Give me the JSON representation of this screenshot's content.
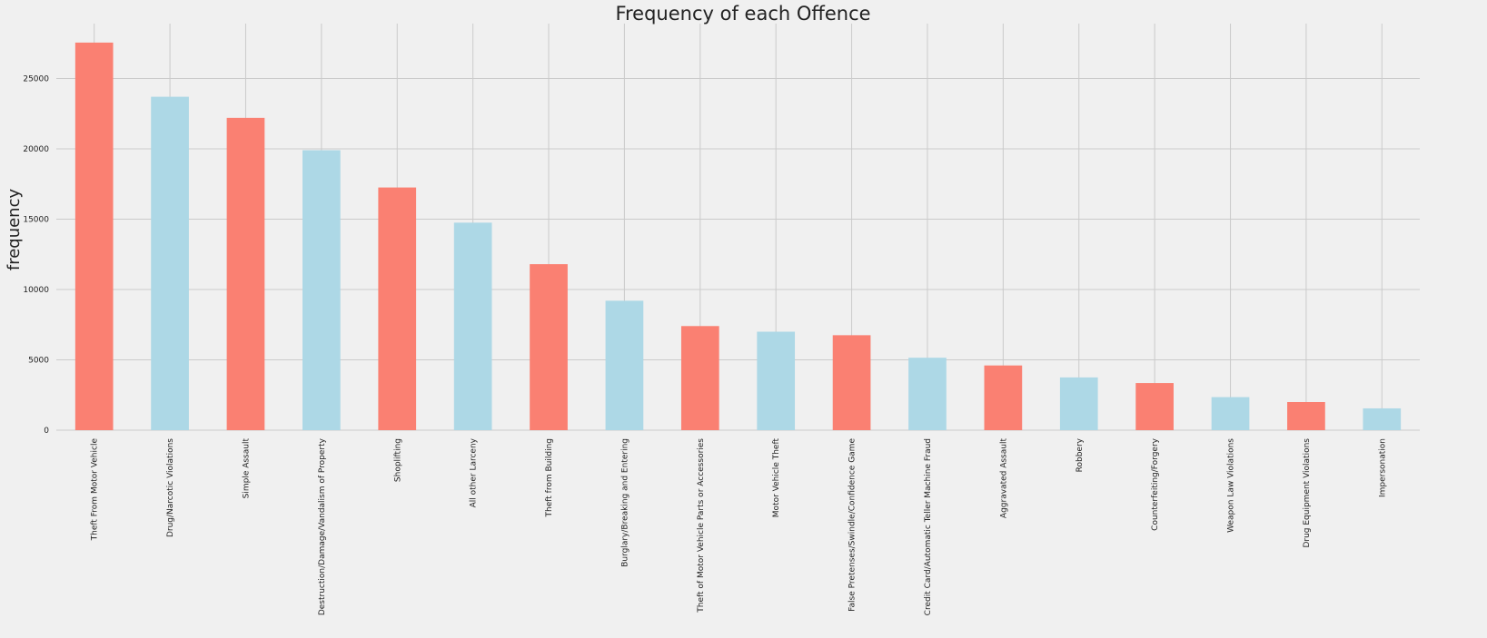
{
  "chart_data": {
    "type": "bar",
    "title": "Frequency of each Offence",
    "xlabel": "",
    "ylabel": "frequency",
    "categories": [
      "Theft From Motor Vehicle",
      "Drug/Narcotic Violations",
      "Simple Assault",
      "Destruction/Damage/Vandalism of Property",
      "Shoplifting",
      "All other Larceny",
      "Theft from Building",
      "Burglary/Breaking and Entering",
      "Theft of Motor Vehicle Parts or Accessories",
      "Motor Vehicle Theft",
      "False Pretenses/Swindle/Confidence Game",
      "Credit Card/Automatic Teller Machine Fraud",
      "Aggravated Assault",
      "Robbery",
      "Counterfeiting/Forgery",
      "Weapon Law Violations",
      "Drug Equipment Violations",
      "Impersonation"
    ],
    "values": [
      27550,
      23700,
      22200,
      19900,
      17250,
      14750,
      11800,
      9200,
      7400,
      7000,
      6750,
      5150,
      4600,
      3750,
      3350,
      2350,
      2000,
      1550
    ],
    "ylim": [
      0,
      28900
    ],
    "yticks": [
      0,
      5000,
      10000,
      15000,
      20000,
      25000
    ],
    "grid": true,
    "legend": "none",
    "colors": [
      "#fa8072",
      "#add8e6"
    ]
  }
}
